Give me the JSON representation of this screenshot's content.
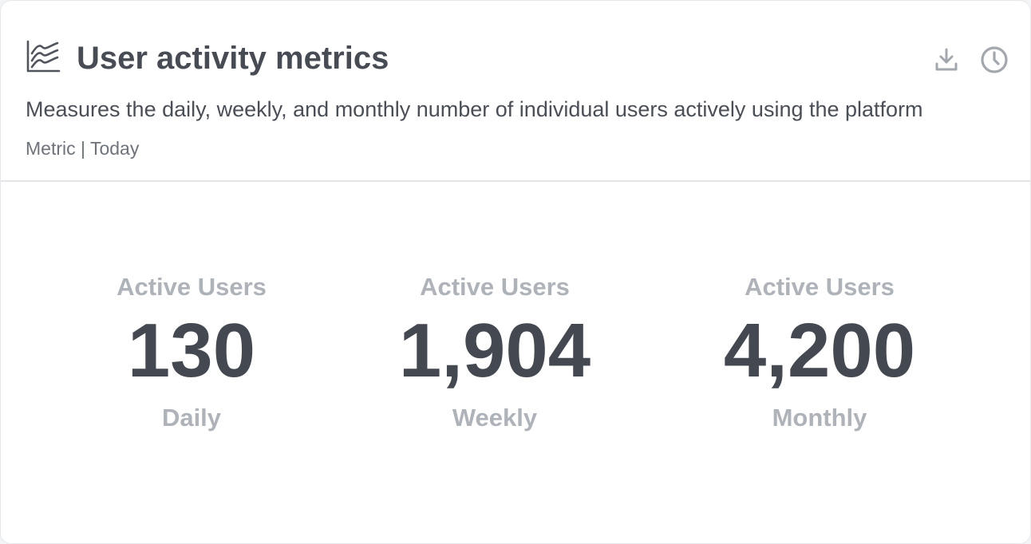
{
  "card": {
    "title": "User activity metrics",
    "description": "Measures the daily, weekly, and monthly number of individual users actively using the platform",
    "meta": "Metric | Today",
    "icons": {
      "title": "stacked-lines-chart-icon",
      "download": "download-icon",
      "history": "clock-icon"
    }
  },
  "metrics": [
    {
      "label": "Active Users",
      "value": "130",
      "period": "Daily"
    },
    {
      "label": "Active Users",
      "value": "1,904",
      "period": "Weekly"
    },
    {
      "label": "Active Users",
      "value": "4,200",
      "period": "Monthly"
    }
  ],
  "colors": {
    "title": "#474b53",
    "value": "#444850",
    "muted": "#aeb2b9",
    "icon": "#a3a7ae"
  }
}
